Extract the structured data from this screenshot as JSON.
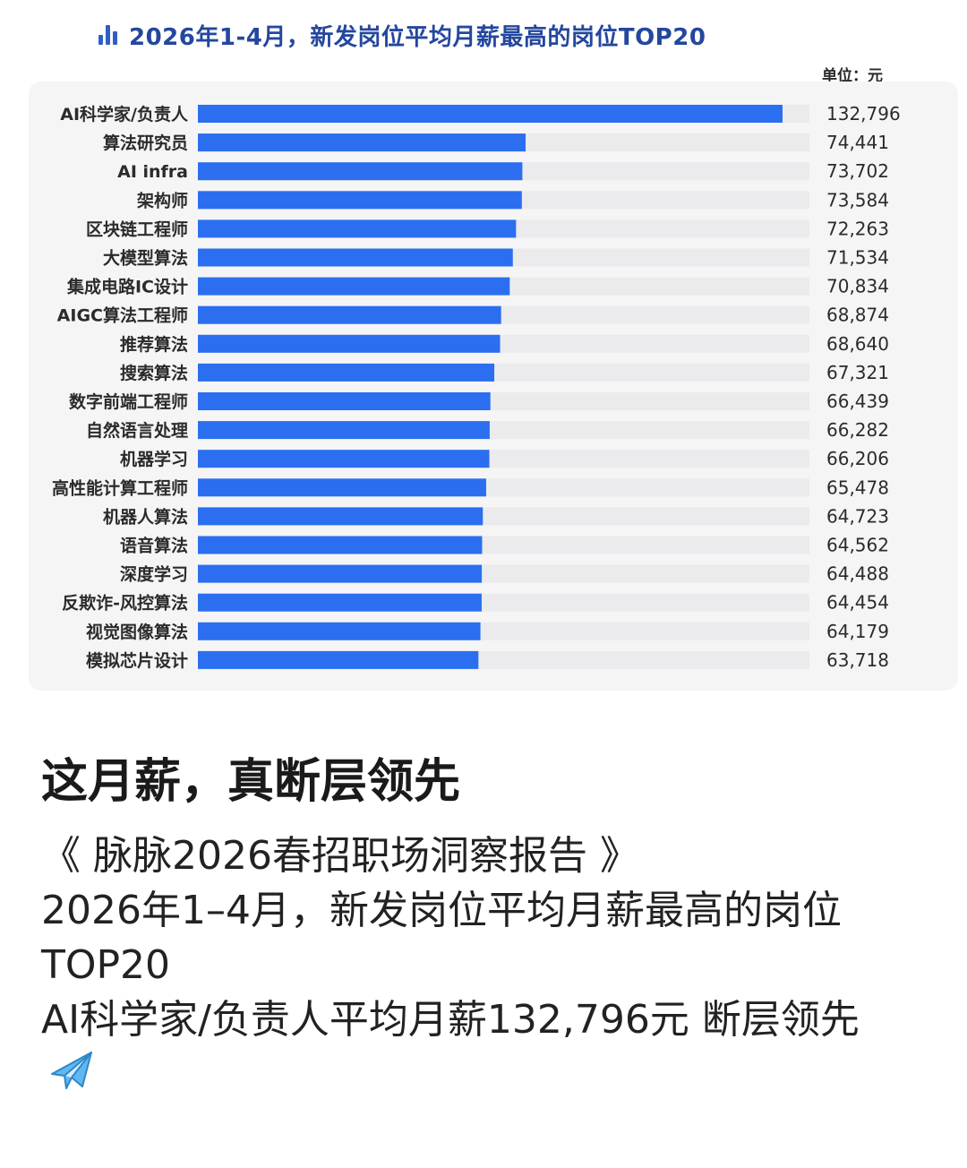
{
  "chart_data": {
    "type": "bar",
    "orientation": "horizontal",
    "title": "2026年1-4月，新发岗位平均月薪最高的岗位TOP20",
    "unit": "单位：元",
    "categories": [
      "AI科学家/负责人",
      "算法研究员",
      "AI infra",
      "架构师",
      "区块链工程师",
      "大模型算法",
      "集成电路IC设计",
      "AIGC算法工程师",
      "推荐算法",
      "搜索算法",
      "数字前端工程师",
      "自然语言处理",
      "机器学习",
      "高性能计算工程师",
      "机器人算法",
      "语音算法",
      "深度学习",
      "反欺诈-风控算法",
      "视觉图像算法",
      "模拟芯片设计"
    ],
    "values": [
      132796,
      74441,
      73702,
      73584,
      72263,
      71534,
      70834,
      68874,
      68640,
      67321,
      66439,
      66282,
      66206,
      65478,
      64723,
      64562,
      64488,
      64454,
      64179,
      63718
    ],
    "value_labels": [
      "132,796",
      "74,441",
      "73,702",
      "73,584",
      "72,263",
      "71,534",
      "70,834",
      "68,874",
      "68,640",
      "67,321",
      "66,439",
      "66,282",
      "66,206",
      "65,478",
      "64,723",
      "64,562",
      "64,488",
      "64,454",
      "64,179",
      "63,718"
    ],
    "xlim": [
      0,
      140000
    ],
    "bar_color": "#2b6ff0",
    "track_color": "#ebebed",
    "title_color": "#24479e"
  },
  "post": {
    "title": "这月薪，真断层领先",
    "lines": [
      "《 脉脉2026春招职场洞察报告 》",
      "2026年1–4月，新发岗位平均月薪最高的岗位TOP20",
      "AI科学家/负责人平均月薪132,796元 断层领先"
    ],
    "emoji_icon": "airplane-icon"
  }
}
